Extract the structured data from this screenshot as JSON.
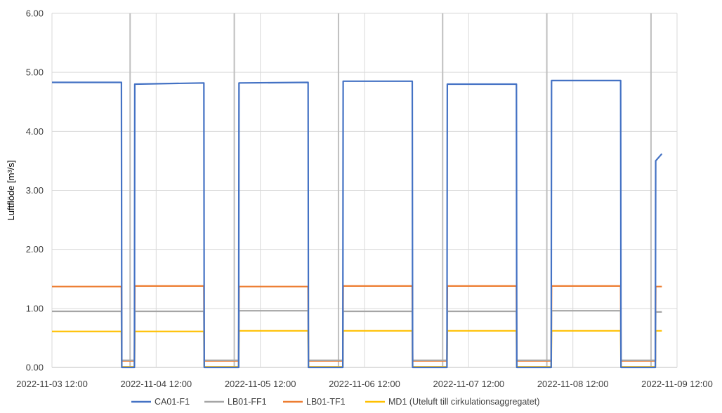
{
  "chart_data": {
    "type": "line",
    "ylabel": "Luftflöde [m³/s]",
    "ylim": [
      0,
      6
    ],
    "y_ticks": [
      "0.00",
      "1.00",
      "2.00",
      "3.00",
      "4.00",
      "5.00",
      "6.00"
    ],
    "xlim": [
      "2022-11-03 12:00",
      "2022-11-09 12:00"
    ],
    "x_ticks": [
      "2022-11-03 12:00",
      "2022-11-04 12:00",
      "2022-11-05 12:00",
      "2022-11-06 12:00",
      "2022-11-07 12:00",
      "2022-11-08 12:00",
      "2022-11-09 12:00"
    ],
    "grid": true,
    "legend": "bottom",
    "series": [
      {
        "name": "CA01-F1",
        "color": "#4472C4",
        "x": [
          "2022-11-03 12:00",
          "2022-11-04 04:00",
          "2022-11-04 04:05",
          "2022-11-04 07:00",
          "2022-11-04 07:05",
          "2022-11-04 23:00",
          "2022-11-04 23:05",
          "2022-11-05 07:00",
          "2022-11-05 07:05",
          "2022-11-05 23:00",
          "2022-11-05 23:05",
          "2022-11-06 07:00",
          "2022-11-06 07:05",
          "2022-11-06 23:00",
          "2022-11-06 23:05",
          "2022-11-07 07:00",
          "2022-11-07 07:05",
          "2022-11-07 23:00",
          "2022-11-07 23:05",
          "2022-11-08 07:00",
          "2022-11-08 07:05",
          "2022-11-08 23:00",
          "2022-11-08 23:05",
          "2022-11-09 07:00",
          "2022-11-09 07:05",
          "2022-11-09 08:30"
        ],
        "y": [
          4.83,
          4.83,
          0,
          0,
          4.8,
          4.82,
          0,
          0,
          4.82,
          4.83,
          0,
          0,
          4.85,
          4.85,
          0,
          0,
          4.8,
          4.8,
          0,
          0,
          4.86,
          4.86,
          0,
          0,
          3.5,
          3.62
        ]
      },
      {
        "name": "LB01-FF1",
        "color": "#A5A5A5",
        "x": [
          "2022-11-03 12:00",
          "2022-11-04 04:00",
          "2022-11-04 04:05",
          "2022-11-04 07:00",
          "2022-11-04 07:05",
          "2022-11-04 23:00",
          "2022-11-04 23:05",
          "2022-11-05 07:00",
          "2022-11-05 07:05",
          "2022-11-05 23:00",
          "2022-11-05 23:05",
          "2022-11-06 07:00",
          "2022-11-06 07:05",
          "2022-11-06 23:00",
          "2022-11-06 23:05",
          "2022-11-07 07:00",
          "2022-11-07 07:05",
          "2022-11-07 23:00",
          "2022-11-07 23:05",
          "2022-11-08 07:00",
          "2022-11-08 07:05",
          "2022-11-08 23:00",
          "2022-11-08 23:05",
          "2022-11-09 07:00",
          "2022-11-09 07:05",
          "2022-11-09 08:30"
        ],
        "y": [
          0.95,
          0.95,
          0.12,
          0.12,
          0.95,
          0.95,
          0.12,
          0.12,
          0.96,
          0.96,
          0.12,
          0.12,
          0.95,
          0.95,
          0.12,
          0.12,
          0.95,
          0.95,
          0.12,
          0.12,
          0.96,
          0.96,
          0.12,
          0.12,
          0.94,
          0.94
        ]
      },
      {
        "name": "LB01-TF1",
        "color": "#ED7D31",
        "x": [
          "2022-11-03 12:00",
          "2022-11-04 04:00",
          "2022-11-04 04:05",
          "2022-11-04 07:00",
          "2022-11-04 07:05",
          "2022-11-04 23:00",
          "2022-11-04 23:05",
          "2022-11-05 07:00",
          "2022-11-05 07:05",
          "2022-11-05 23:00",
          "2022-11-05 23:05",
          "2022-11-06 07:00",
          "2022-11-06 07:05",
          "2022-11-06 23:00",
          "2022-11-06 23:05",
          "2022-11-07 07:00",
          "2022-11-07 07:05",
          "2022-11-07 23:00",
          "2022-11-07 23:05",
          "2022-11-08 07:00",
          "2022-11-08 07:05",
          "2022-11-08 23:00",
          "2022-11-08 23:05",
          "2022-11-09 07:00",
          "2022-11-09 07:05",
          "2022-11-09 08:30"
        ],
        "y": [
          1.37,
          1.37,
          0.11,
          0.11,
          1.38,
          1.38,
          0.11,
          0.11,
          1.37,
          1.37,
          0.11,
          0.11,
          1.38,
          1.38,
          0.11,
          0.11,
          1.38,
          1.38,
          0.11,
          0.11,
          1.38,
          1.38,
          0.11,
          0.11,
          1.37,
          1.37
        ]
      },
      {
        "name": "MD1 (Uteluft till cirkulationsaggregatet)",
        "color": "#FFC000",
        "x": [
          "2022-11-03 12:00",
          "2022-11-04 04:00",
          "2022-11-04 04:05",
          "2022-11-04 07:00",
          "2022-11-04 07:05",
          "2022-11-04 23:00",
          "2022-11-04 23:05",
          "2022-11-05 07:00",
          "2022-11-05 07:05",
          "2022-11-05 23:00",
          "2022-11-05 23:05",
          "2022-11-06 07:00",
          "2022-11-06 07:05",
          "2022-11-06 23:00",
          "2022-11-06 23:05",
          "2022-11-07 07:00",
          "2022-11-07 07:05",
          "2022-11-07 23:00",
          "2022-11-07 23:05",
          "2022-11-08 07:00",
          "2022-11-08 07:05",
          "2022-11-08 23:00",
          "2022-11-08 23:05",
          "2022-11-09 07:00",
          "2022-11-09 07:05",
          "2022-11-09 08:30"
        ],
        "y": [
          0.61,
          0.61,
          0.01,
          0.01,
          0.61,
          0.61,
          0.01,
          0.01,
          0.62,
          0.62,
          0.01,
          0.01,
          0.62,
          0.62,
          0.01,
          0.01,
          0.62,
          0.62,
          0.01,
          0.01,
          0.62,
          0.62,
          0.01,
          0.01,
          0.62,
          0.62
        ]
      }
    ],
    "vertical_markers": {
      "color": "#BFBFBF",
      "x": [
        "2022-11-04 06:00",
        "2022-11-05 06:00",
        "2022-11-06 06:00",
        "2022-11-07 06:00",
        "2022-11-08 06:00",
        "2022-11-09 06:00"
      ]
    }
  }
}
